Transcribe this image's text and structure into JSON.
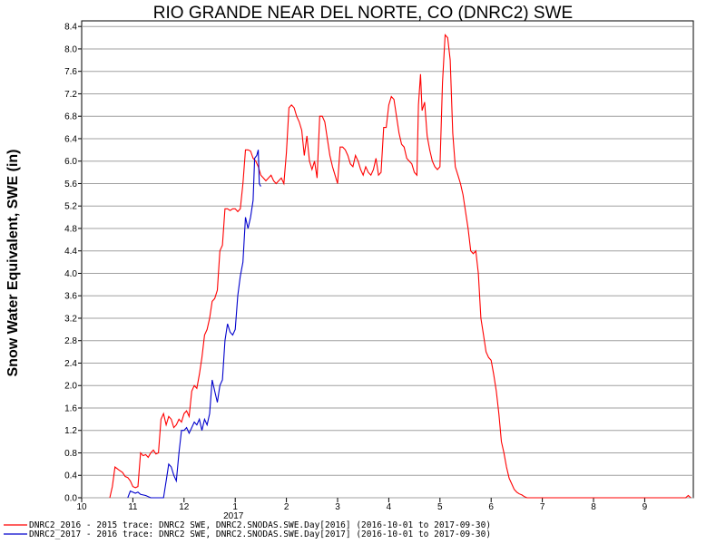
{
  "chart_data": {
    "type": "line",
    "title": "RIO GRANDE NEAR DEL NORTE, CO (DNRC2) SWE",
    "ylabel": "Snow Water Equivalent, SWE (in)",
    "xlabel": "",
    "x_unit": "months since 2016-10-01",
    "xlim": [
      0,
      11.95
    ],
    "ylim": [
      0,
      8.5
    ],
    "yticks": [
      "0.0",
      "0.4",
      "0.8",
      "1.2",
      "1.6",
      "2.0",
      "2.4",
      "2.8",
      "3.2",
      "3.6",
      "4.0",
      "4.4",
      "4.8",
      "5.2",
      "5.6",
      "6.0",
      "6.4",
      "6.8",
      "7.2",
      "7.6",
      "8.0",
      "8.4"
    ],
    "xticks": [
      {
        "pos": 0,
        "label": "10"
      },
      {
        "pos": 1,
        "label": "11"
      },
      {
        "pos": 2,
        "label": "12"
      },
      {
        "pos": 3,
        "label": "1"
      },
      {
        "pos": 4,
        "label": "2"
      },
      {
        "pos": 5,
        "label": "3"
      },
      {
        "pos": 6,
        "label": "4"
      },
      {
        "pos": 7,
        "label": "5"
      },
      {
        "pos": 8,
        "label": "6"
      },
      {
        "pos": 9,
        "label": "7"
      },
      {
        "pos": 10,
        "label": "8"
      },
      {
        "pos": 11,
        "label": "9"
      }
    ],
    "year_label": {
      "pos": 3,
      "label": "2017"
    },
    "grid": true,
    "series": [
      {
        "name": "DNRC2_2016",
        "color": "#ff0000",
        "legend": "DNRC2_2016 - 2015 trace: DNRC2 SWE, DNRC2.SNODAS.SWE.Day[2016] (2016-10-01 to 2017-09-30)",
        "points": [
          [
            0.55,
            0.0
          ],
          [
            0.6,
            0.2
          ],
          [
            0.65,
            0.55
          ],
          [
            0.72,
            0.5
          ],
          [
            0.8,
            0.45
          ],
          [
            0.85,
            0.38
          ],
          [
            0.9,
            0.36
          ],
          [
            0.95,
            0.3
          ],
          [
            1.0,
            0.2
          ],
          [
            1.05,
            0.18
          ],
          [
            1.1,
            0.2
          ],
          [
            1.12,
            0.45
          ],
          [
            1.15,
            0.8
          ],
          [
            1.2,
            0.75
          ],
          [
            1.25,
            0.77
          ],
          [
            1.3,
            0.72
          ],
          [
            1.35,
            0.8
          ],
          [
            1.4,
            0.85
          ],
          [
            1.45,
            0.78
          ],
          [
            1.5,
            0.8
          ],
          [
            1.55,
            1.4
          ],
          [
            1.6,
            1.5
          ],
          [
            1.65,
            1.3
          ],
          [
            1.7,
            1.45
          ],
          [
            1.75,
            1.4
          ],
          [
            1.8,
            1.25
          ],
          [
            1.85,
            1.3
          ],
          [
            1.9,
            1.4
          ],
          [
            1.95,
            1.35
          ],
          [
            2.0,
            1.5
          ],
          [
            2.05,
            1.55
          ],
          [
            2.1,
            1.45
          ],
          [
            2.15,
            1.9
          ],
          [
            2.2,
            2.0
          ],
          [
            2.25,
            1.95
          ],
          [
            2.3,
            2.2
          ],
          [
            2.35,
            2.5
          ],
          [
            2.4,
            2.9
          ],
          [
            2.45,
            3.0
          ],
          [
            2.5,
            3.2
          ],
          [
            2.55,
            3.5
          ],
          [
            2.6,
            3.55
          ],
          [
            2.65,
            3.7
          ],
          [
            2.7,
            4.4
          ],
          [
            2.75,
            4.5
          ],
          [
            2.8,
            5.15
          ],
          [
            2.85,
            5.15
          ],
          [
            2.9,
            5.12
          ],
          [
            2.95,
            5.15
          ],
          [
            3.0,
            5.15
          ],
          [
            3.05,
            5.1
          ],
          [
            3.1,
            5.15
          ],
          [
            3.15,
            5.6
          ],
          [
            3.2,
            6.2
          ],
          [
            3.25,
            6.2
          ],
          [
            3.3,
            6.18
          ],
          [
            3.35,
            6.05
          ],
          [
            3.4,
            6.0
          ],
          [
            3.45,
            5.9
          ],
          [
            3.5,
            5.75
          ],
          [
            3.55,
            5.7
          ],
          [
            3.6,
            5.65
          ],
          [
            3.65,
            5.7
          ],
          [
            3.7,
            5.75
          ],
          [
            3.75,
            5.65
          ],
          [
            3.8,
            5.6
          ],
          [
            3.85,
            5.65
          ],
          [
            3.9,
            5.7
          ],
          [
            3.95,
            5.6
          ],
          [
            4.0,
            6.15
          ],
          [
            4.05,
            6.95
          ],
          [
            4.1,
            7.0
          ],
          [
            4.15,
            6.95
          ],
          [
            4.2,
            6.8
          ],
          [
            4.25,
            6.7
          ],
          [
            4.3,
            6.55
          ],
          [
            4.35,
            6.1
          ],
          [
            4.4,
            6.45
          ],
          [
            4.45,
            6.0
          ],
          [
            4.5,
            5.85
          ],
          [
            4.55,
            6.0
          ],
          [
            4.6,
            5.7
          ],
          [
            4.65,
            6.8
          ],
          [
            4.7,
            6.8
          ],
          [
            4.75,
            6.7
          ],
          [
            4.8,
            6.4
          ],
          [
            4.85,
            6.1
          ],
          [
            4.9,
            5.9
          ],
          [
            4.95,
            5.75
          ],
          [
            5.0,
            5.6
          ],
          [
            5.05,
            6.25
          ],
          [
            5.1,
            6.25
          ],
          [
            5.15,
            6.2
          ],
          [
            5.2,
            6.1
          ],
          [
            5.25,
            5.95
          ],
          [
            5.3,
            5.9
          ],
          [
            5.35,
            6.1
          ],
          [
            5.4,
            6.0
          ],
          [
            5.45,
            5.85
          ],
          [
            5.5,
            5.75
          ],
          [
            5.55,
            5.9
          ],
          [
            5.6,
            5.8
          ],
          [
            5.65,
            5.75
          ],
          [
            5.7,
            5.85
          ],
          [
            5.75,
            6.05
          ],
          [
            5.8,
            5.75
          ],
          [
            5.85,
            5.8
          ],
          [
            5.9,
            6.6
          ],
          [
            5.95,
            6.6
          ],
          [
            6.0,
            7.0
          ],
          [
            6.05,
            7.15
          ],
          [
            6.1,
            7.1
          ],
          [
            6.15,
            6.8
          ],
          [
            6.2,
            6.5
          ],
          [
            6.25,
            6.3
          ],
          [
            6.3,
            6.25
          ],
          [
            6.35,
            6.05
          ],
          [
            6.4,
            6.0
          ],
          [
            6.45,
            5.95
          ],
          [
            6.5,
            5.8
          ],
          [
            6.55,
            5.75
          ],
          [
            6.58,
            7.0
          ],
          [
            6.62,
            7.55
          ],
          [
            6.65,
            6.9
          ],
          [
            6.7,
            7.05
          ],
          [
            6.75,
            6.45
          ],
          [
            6.8,
            6.2
          ],
          [
            6.85,
            6.0
          ],
          [
            6.9,
            5.9
          ],
          [
            6.95,
            5.85
          ],
          [
            7.0,
            5.9
          ],
          [
            7.05,
            7.4
          ],
          [
            7.1,
            8.25
          ],
          [
            7.15,
            8.2
          ],
          [
            7.2,
            7.8
          ],
          [
            7.25,
            6.5
          ],
          [
            7.3,
            5.9
          ],
          [
            7.35,
            5.75
          ],
          [
            7.4,
            5.6
          ],
          [
            7.45,
            5.4
          ],
          [
            7.5,
            5.1
          ],
          [
            7.55,
            4.8
          ],
          [
            7.6,
            4.4
          ],
          [
            7.65,
            4.35
          ],
          [
            7.7,
            4.4
          ],
          [
            7.75,
            4.0
          ],
          [
            7.8,
            3.2
          ],
          [
            7.85,
            2.9
          ],
          [
            7.9,
            2.6
          ],
          [
            7.95,
            2.5
          ],
          [
            8.0,
            2.45
          ],
          [
            8.05,
            2.2
          ],
          [
            8.1,
            1.9
          ],
          [
            8.15,
            1.5
          ],
          [
            8.2,
            1.0
          ],
          [
            8.25,
            0.8
          ],
          [
            8.3,
            0.55
          ],
          [
            8.35,
            0.35
          ],
          [
            8.4,
            0.25
          ],
          [
            8.45,
            0.15
          ],
          [
            8.5,
            0.1
          ],
          [
            8.55,
            0.07
          ],
          [
            8.6,
            0.05
          ],
          [
            8.65,
            0.02
          ],
          [
            8.7,
            0.0
          ],
          [
            11.8,
            0.0
          ],
          [
            11.85,
            0.04
          ],
          [
            11.9,
            0.0
          ]
        ]
      },
      {
        "name": "DNRC2_2017",
        "color": "#0000cc",
        "legend": "DNRC2_2017 - 2016 trace: DNRC2 SWE, DNRC2.SNODAS.SWE.Day[2017] (2016-10-01 to 2017-09-30)",
        "points": [
          [
            0.9,
            0.0
          ],
          [
            0.95,
            0.12
          ],
          [
            1.05,
            0.08
          ],
          [
            1.1,
            0.1
          ],
          [
            1.15,
            0.06
          ],
          [
            1.25,
            0.04
          ],
          [
            1.35,
            0.0
          ],
          [
            1.6,
            0.0
          ],
          [
            1.65,
            0.3
          ],
          [
            1.7,
            0.6
          ],
          [
            1.75,
            0.55
          ],
          [
            1.8,
            0.4
          ],
          [
            1.85,
            0.3
          ],
          [
            1.9,
            0.8
          ],
          [
            1.95,
            1.2
          ],
          [
            2.0,
            1.2
          ],
          [
            2.05,
            1.25
          ],
          [
            2.1,
            1.15
          ],
          [
            2.2,
            1.35
          ],
          [
            2.25,
            1.3
          ],
          [
            2.3,
            1.4
          ],
          [
            2.35,
            1.2
          ],
          [
            2.4,
            1.4
          ],
          [
            2.45,
            1.3
          ],
          [
            2.5,
            1.5
          ],
          [
            2.55,
            2.1
          ],
          [
            2.6,
            1.9
          ],
          [
            2.65,
            1.7
          ],
          [
            2.7,
            2.0
          ],
          [
            2.75,
            2.1
          ],
          [
            2.8,
            2.8
          ],
          [
            2.85,
            3.1
          ],
          [
            2.9,
            2.95
          ],
          [
            2.95,
            2.9
          ],
          [
            3.0,
            3.0
          ],
          [
            3.05,
            3.6
          ],
          [
            3.1,
            3.95
          ],
          [
            3.15,
            4.2
          ],
          [
            3.2,
            5.0
          ],
          [
            3.25,
            4.8
          ],
          [
            3.3,
            5.0
          ],
          [
            3.35,
            5.3
          ],
          [
            3.38,
            6.05
          ],
          [
            3.42,
            6.1
          ],
          [
            3.45,
            6.2
          ],
          [
            3.47,
            5.6
          ],
          [
            3.5,
            5.55
          ]
        ]
      }
    ]
  }
}
